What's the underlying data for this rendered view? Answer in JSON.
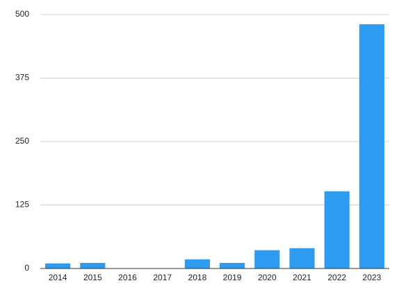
{
  "chart_data": {
    "type": "bar",
    "categories": [
      "2014",
      "2015",
      "2016",
      "2017",
      "2018",
      "2019",
      "2020",
      "2021",
      "2022",
      "2023"
    ],
    "values": [
      10,
      11,
      0,
      0,
      18,
      11,
      36,
      40,
      152,
      481
    ],
    "color": "#2d9bf0",
    "ylim": [
      0,
      500
    ],
    "yticks": [
      0,
      125,
      250,
      375,
      500
    ],
    "grid": true
  }
}
